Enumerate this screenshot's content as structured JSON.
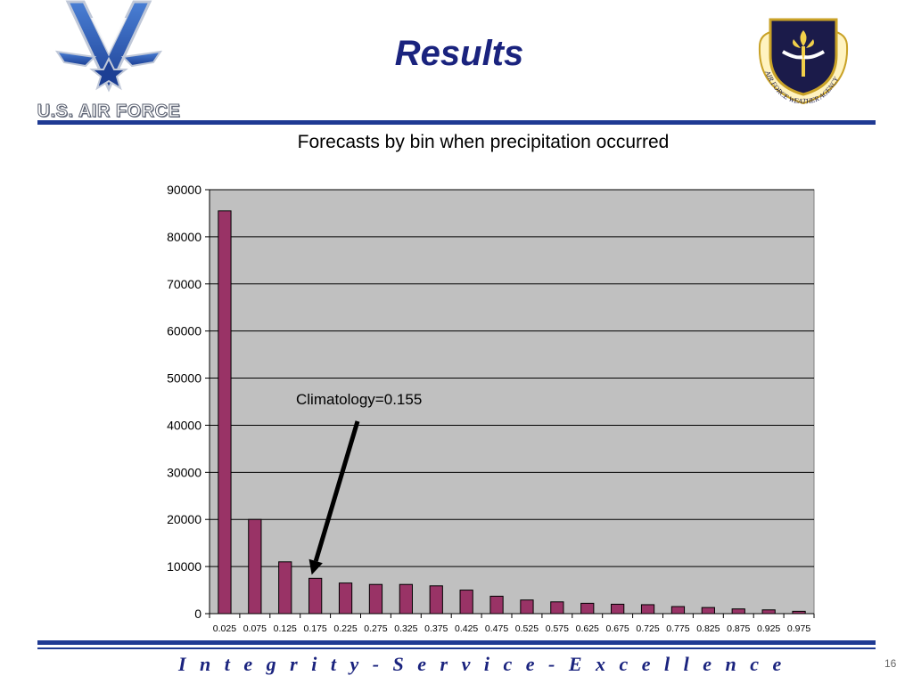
{
  "slide": {
    "title": "Results",
    "logo_left_text": "U.S. AIR FORCE",
    "logo_right_text": "AIR FORCE WEATHER AGENCY",
    "footer_motto": "I n t e g r i t y  -  S e r v i c e  -  E x c e l l e n c e",
    "page_number": "16"
  },
  "colors": {
    "title": "#1a237e",
    "rule": "#1f3a93",
    "bar_fill": "#993366",
    "plot_bg": "#c0c0c0"
  },
  "chart_data": {
    "type": "bar",
    "title": "Forecasts by bin when precipitation occurred",
    "xlabel": "",
    "ylabel": "",
    "categories": [
      "0.025",
      "0.075",
      "0.125",
      "0.175",
      "0.225",
      "0.275",
      "0.325",
      "0.375",
      "0.425",
      "0.475",
      "0.525",
      "0.575",
      "0.625",
      "0.675",
      "0.725",
      "0.775",
      "0.825",
      "0.875",
      "0.925",
      "0.975"
    ],
    "values": [
      85500,
      20000,
      11000,
      7500,
      6500,
      6200,
      6200,
      5900,
      5000,
      3700,
      2900,
      2500,
      2200,
      2000,
      1900,
      1500,
      1300,
      1000,
      800,
      500
    ],
    "ylim": [
      0,
      90000
    ],
    "yticks": [
      0,
      10000,
      20000,
      30000,
      40000,
      50000,
      60000,
      70000,
      80000,
      90000
    ],
    "grid": true,
    "legend": "none",
    "annotation": {
      "text": "Climatology=0.155",
      "arrow_points_to": "0.175"
    }
  }
}
